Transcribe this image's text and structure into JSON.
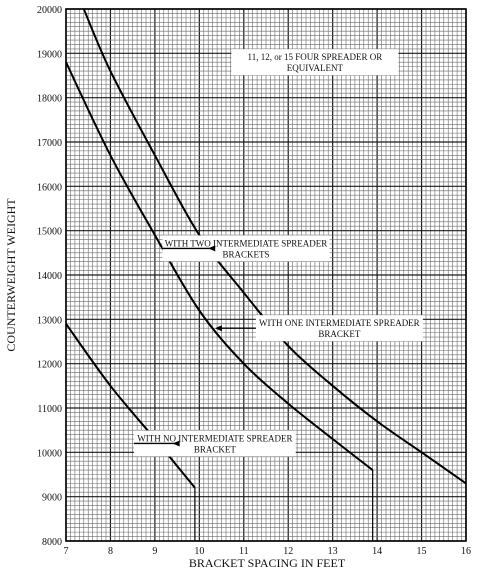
{
  "chart_data": {
    "type": "line",
    "xlabel": "BRACKET SPACING IN FEET",
    "ylabel": "COUNTERWEIGHT WEIGHT",
    "xlim": [
      7,
      16
    ],
    "ylim": [
      8000,
      20000
    ],
    "grid": true,
    "x_ticks": [
      "7",
      "8",
      "9",
      "10",
      "11",
      "12",
      "13",
      "14",
      "15",
      "16"
    ],
    "y_ticks": [
      "8000",
      "9000",
      "10000",
      "11000",
      "12000",
      "13000",
      "14000",
      "15000",
      "16000",
      "17000",
      "18000",
      "19000",
      "20000"
    ],
    "series": [
      {
        "name": "11, 12, or 15 FOUR SPREADER OR EQUIVALENT",
        "x": [
          7.4,
          8,
          9,
          10,
          11,
          12,
          13,
          14,
          15,
          16
        ],
        "y": [
          20000,
          18600,
          16700,
          14900,
          13600,
          12400,
          11500,
          10700,
          10000,
          9300
        ]
      },
      {
        "name": "WITH TWO INTERMEDIATE SPREADER BRACKETS",
        "x": [
          7,
          8,
          9,
          10,
          11,
          12,
          13,
          13.9
        ],
        "y": [
          18800,
          16700,
          14900,
          13200,
          12000,
          11100,
          10300,
          9600
        ],
        "drop_to": 8000
      },
      {
        "name": "WITH ONE INTERMEDIATE SPREADER BRACKET",
        "x": [
          7,
          8,
          9,
          9.9
        ],
        "y": [
          12900,
          11500,
          10300,
          9200
        ],
        "drop_to": 8000
      }
    ],
    "annotations": [
      {
        "lines": [
          "11, 12, or 15 FOUR SPREADER OR",
          "EQUIVALENT"
        ],
        "x": 12.6,
        "y": 18800,
        "arrow_to": null
      },
      {
        "lines": [
          "WITH TWO INTERMEDIATE SPREADER",
          "BRACKETS"
        ],
        "x": 11.05,
        "y": 14600,
        "arrow_to": [
          10.2,
          14600
        ]
      },
      {
        "lines": [
          "WITH ONE INTERMEDIATE SPREADER",
          "BRACKET"
        ],
        "x": 13.15,
        "y": 12800,
        "arrow_to": [
          10.35,
          12800
        ]
      },
      {
        "lines": [
          "WITH NO INTERMEDIATE SPREADER",
          "BRACKET"
        ],
        "x": 10.35,
        "y": 10200,
        "arrow_to": [
          9.4,
          10200
        ]
      }
    ]
  }
}
